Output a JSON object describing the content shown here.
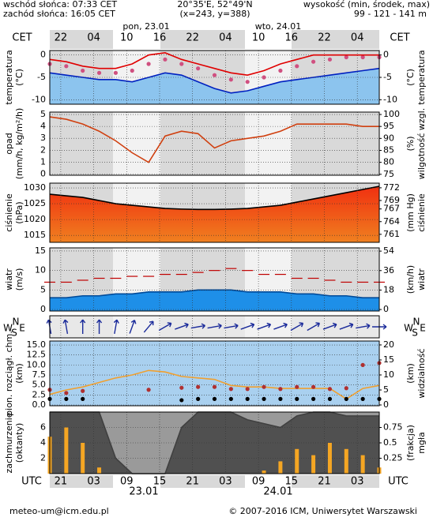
{
  "header": {
    "sunrise": "wschód słońca: 07:33 CET",
    "sunset": "zachód słońca: 16:05 CET",
    "coords": "20°35'E, 52°49'N",
    "grid_point": "(x=243, y=388)",
    "elevation_title": "wysokość (min, środek, max)",
    "elevation": "99 - 121 - 141 m"
  },
  "time_axis": {
    "cet_label": "CET",
    "utc_label": "UTC",
    "day1_top": "pon, 23.01",
    "day2_top": "wto, 24.01",
    "day1_bottom": "23.01",
    "day2_bottom": "24.01",
    "cet_ticks": [
      {
        "value": 2,
        "label": "22"
      },
      {
        "value": 8,
        "label": "04"
      },
      {
        "value": 14,
        "label": "10"
      },
      {
        "value": 20,
        "label": "16"
      },
      {
        "value": 26,
        "label": "22"
      },
      {
        "value": 32,
        "label": "04"
      },
      {
        "value": 38,
        "label": "10"
      },
      {
        "value": 44,
        "label": "16"
      },
      {
        "value": 50,
        "label": "22"
      },
      {
        "value": 56,
        "label": "04"
      }
    ],
    "utc_ticks": [
      {
        "value": 2,
        "label": "21"
      },
      {
        "value": 8,
        "label": "03"
      },
      {
        "value": 14,
        "label": "09"
      },
      {
        "value": 20,
        "label": "15"
      },
      {
        "value": 26,
        "label": "21"
      },
      {
        "value": 32,
        "label": "03"
      },
      {
        "value": 38,
        "label": "09"
      },
      {
        "value": 44,
        "label": "15"
      },
      {
        "value": 50,
        "label": "21"
      },
      {
        "value": 56,
        "label": "03"
      }
    ]
  },
  "footer": {
    "email": "meteo-um@icm.edu.pl",
    "copyright": "© 2007-2016 ICM, Uniwersytet Warszawski"
  },
  "chart_data": [
    {
      "type": "line",
      "ylabel": [
        "temperatura",
        "(°C)"
      ],
      "y2label": [
        "(°C)",
        "temperatura"
      ],
      "xlim": [
        0,
        60
      ],
      "x": [
        0,
        3,
        6,
        9,
        12,
        15,
        18,
        21,
        24,
        27,
        30,
        33,
        36,
        39,
        42,
        45,
        48,
        51,
        54,
        57,
        60
      ],
      "ylim": [
        -11,
        1
      ],
      "yticks": [
        0,
        -5,
        -10
      ],
      "y2lim": [
        -11,
        1
      ],
      "y2ticks": [
        0,
        -5,
        -10
      ],
      "series": [
        {
          "color": "#0020c0",
          "style": "area",
          "fill": "#8cc4ee",
          "values": [
            -4,
            -4.5,
            -5,
            -5.5,
            -5.5,
            -6,
            -5,
            -4,
            -4.5,
            -6,
            -7.5,
            -8.5,
            -8,
            -7,
            -6,
            -5.5,
            -5,
            -4.5,
            -4,
            -3.5,
            -3
          ]
        },
        {
          "color": "#d05080",
          "style": "dots",
          "values": [
            -2,
            -2.5,
            -3.5,
            -4,
            -4,
            -3.5,
            -2,
            -1,
            -2,
            -3,
            -4.5,
            -5.5,
            -6,
            -5,
            -3.5,
            -2.5,
            -1.5,
            -1,
            -0.5,
            -0.5,
            -0.5
          ]
        },
        {
          "color": "#e00000",
          "style": "line",
          "values": [
            -1,
            -1.5,
            -2.5,
            -3,
            -3,
            -2,
            0,
            0.5,
            -1,
            -2,
            -3,
            -4,
            -4.5,
            -3.5,
            -2,
            -1,
            0,
            0,
            0,
            0,
            0
          ]
        }
      ]
    },
    {
      "type": "line",
      "ylabel": [
        "opad",
        "(mm/h, kg/m²/h)"
      ],
      "y2label": [
        "(%)",
        "wilgotność wzgl."
      ],
      "xlim": [
        0,
        60
      ],
      "x": [
        0,
        3,
        6,
        9,
        12,
        15,
        18,
        21,
        24,
        27,
        30,
        33,
        36,
        39,
        42,
        45,
        48,
        51,
        54,
        57,
        60
      ],
      "ylim": [
        -0.1,
        5.2
      ],
      "yticks": [
        0,
        1,
        2,
        3,
        4,
        5
      ],
      "y2lim": [
        74.6,
        101
      ],
      "y2ticks": [
        75,
        80,
        85,
        90,
        95,
        100
      ],
      "series": [
        {
          "color": "#d04010",
          "style": "line",
          "axis": "y2",
          "values": [
            99,
            98,
            96,
            93,
            89,
            84,
            80,
            91,
            93,
            92,
            86,
            89,
            90,
            91,
            93,
            96,
            96,
            96,
            96,
            95,
            95
          ]
        }
      ]
    },
    {
      "type": "line",
      "ylabel": [
        "ciśnienie",
        "(hPa)"
      ],
      "y2label": [
        "(mm Hg)",
        "ciśnienie"
      ],
      "xlim": [
        0,
        60
      ],
      "x": [
        0,
        3,
        6,
        9,
        12,
        15,
        18,
        21,
        24,
        27,
        30,
        33,
        36,
        39,
        42,
        45,
        48,
        51,
        54,
        57,
        60
      ],
      "ylim": [
        1012.8,
        1031.5
      ],
      "yticks": [
        1015,
        1020,
        1025,
        1030
      ],
      "y2lim": [
        759.1,
        773.1
      ],
      "y2ticks": [
        761,
        764,
        767,
        769,
        772
      ],
      "series": [
        {
          "color": "#000000",
          "style": "area",
          "fill": "url(#pg)",
          "values": [
            1028,
            1027.5,
            1027,
            1026,
            1025,
            1024.5,
            1024,
            1023.5,
            1023.3,
            1023.2,
            1023.2,
            1023.3,
            1023.5,
            1024,
            1024.5,
            1025.5,
            1026.5,
            1027.5,
            1028.5,
            1029.5,
            1030.5
          ]
        }
      ]
    },
    {
      "type": "line",
      "ylabel": [
        "wiatr",
        "(m/s)"
      ],
      "y2label": [
        "(km/h)",
        "wiatr"
      ],
      "xlim": [
        0,
        60
      ],
      "x": [
        0,
        3,
        6,
        9,
        12,
        15,
        18,
        21,
        24,
        27,
        30,
        33,
        36,
        39,
        42,
        45,
        48,
        51,
        54,
        57,
        60
      ],
      "ylim": [
        -0.4,
        15.8
      ],
      "yticks": [
        0,
        5,
        10,
        15
      ],
      "y2lim": [
        -1.4,
        57
      ],
      "y2ticks": [
        0,
        18,
        36,
        54
      ],
      "series": [
        {
          "color": "#004a99",
          "style": "area",
          "fill": "#1e8fe8",
          "values": [
            3,
            3,
            3.5,
            3.5,
            4,
            4,
            4.5,
            4.5,
            4.5,
            5,
            5,
            5,
            4.5,
            4.5,
            4.5,
            4,
            4,
            3.5,
            3.5,
            3,
            3
          ]
        },
        {
          "color": "#c00000",
          "style": "dashes",
          "values": [
            7,
            7,
            7.5,
            8,
            8,
            8.5,
            8.5,
            9,
            9,
            9.5,
            10,
            10.5,
            10,
            9,
            9,
            8,
            8,
            7.5,
            7,
            7,
            7
          ]
        }
      ]
    },
    {
      "type": "arrows",
      "compass": [
        "W",
        "S",
        "N",
        "E"
      ],
      "xlim": [
        0,
        60
      ],
      "x": [
        0,
        3,
        6,
        9,
        12,
        15,
        18,
        21,
        24,
        27,
        30,
        33,
        36,
        39,
        42,
        45,
        48,
        51,
        54,
        57,
        60
      ],
      "series": [
        {
          "color": "#1a2a9a",
          "style": "arrows",
          "values": [
            170,
            170,
            180,
            180,
            190,
            200,
            220,
            240,
            250,
            260,
            260,
            260,
            250,
            250,
            250,
            240,
            240,
            250,
            250,
            260,
            270
          ]
        }
      ]
    },
    {
      "type": "line",
      "ylabel": [
        "pion. rozciągł. chm.",
        "(km)"
      ],
      "y2label": [
        "(km)",
        "widzialność"
      ],
      "xlim": [
        0,
        60
      ],
      "x": [
        0,
        3,
        6,
        9,
        12,
        15,
        18,
        21,
        24,
        27,
        30,
        33,
        36,
        39,
        42,
        45,
        48,
        51,
        54,
        57,
        60
      ],
      "ylim": [
        -0.2,
        16
      ],
      "yticks": [
        {
          "value": 0,
          "label": "0.0"
        },
        2.5,
        {
          "value": 5,
          "label": "5.0"
        },
        7.5,
        {
          "value": 10,
          "label": "10.0"
        },
        12.5,
        {
          "value": 15,
          "label": "15.0"
        }
      ],
      "y2lim": [
        -0.26,
        21.3
      ],
      "y2ticks": [
        0,
        5,
        10,
        15,
        20
      ],
      "series": [
        {
          "color": "#f0a030",
          "style": "line",
          "axis": "y2",
          "values": [
            3.5,
            5,
            6,
            7.5,
            9,
            10,
            11.5,
            11,
            9.5,
            9,
            8.5,
            6.5,
            6,
            6,
            5.5,
            5.5,
            5.5,
            5.5,
            2,
            5.5,
            6.5
          ]
        },
        {
          "color": "#b03030",
          "style": "dots",
          "values": [
            3.8,
            3,
            3.5,
            null,
            null,
            null,
            3.8,
            null,
            4.3,
            4.5,
            4.5,
            4,
            4,
            4.5,
            4,
            4.5,
            4.5,
            4,
            4.2,
            10,
            10.5
          ]
        },
        {
          "color": "#000000",
          "style": "dots",
          "values": [
            1.5,
            1.5,
            1.5,
            null,
            null,
            null,
            null,
            null,
            1.2,
            1.5,
            1.5,
            1.5,
            1.5,
            1.5,
            1.5,
            1.5,
            1.5,
            1.5,
            1.5,
            1.5,
            1.5
          ]
        }
      ]
    },
    {
      "type": "line",
      "ylabel": [
        "zachmurzenie",
        "(oktanty)"
      ],
      "y2label": [
        "(frakcja)",
        "mgła"
      ],
      "xlim": [
        0,
        60
      ],
      "x": [
        0,
        3,
        6,
        9,
        12,
        15,
        18,
        21,
        24,
        27,
        30,
        33,
        36,
        39,
        42,
        45,
        48,
        51,
        54,
        57,
        60
      ],
      "ylim": [
        0,
        8
      ],
      "yticks": [
        2,
        4,
        6
      ],
      "y2lim": [
        0,
        1
      ],
      "y2ticks": [
        0.25,
        0.5,
        0.75
      ],
      "series": [
        {
          "color": "#404040",
          "style": "area",
          "fill": "#505050",
          "values": [
            8,
            8,
            8,
            8,
            2,
            0,
            0,
            0,
            6,
            8,
            8,
            8,
            7,
            6.5,
            6,
            7.5,
            8,
            8,
            7.5,
            7.5,
            7.5
          ]
        },
        {
          "color": "#f5a623",
          "style": "bars",
          "axis": "y2",
          "values": [
            0.6,
            0.75,
            0.5,
            0.1,
            0,
            0,
            0,
            0,
            0,
            0,
            0,
            0,
            0,
            0.05,
            0.2,
            0.4,
            0.3,
            0.5,
            0.4,
            0.3,
            0.1
          ]
        }
      ]
    }
  ]
}
